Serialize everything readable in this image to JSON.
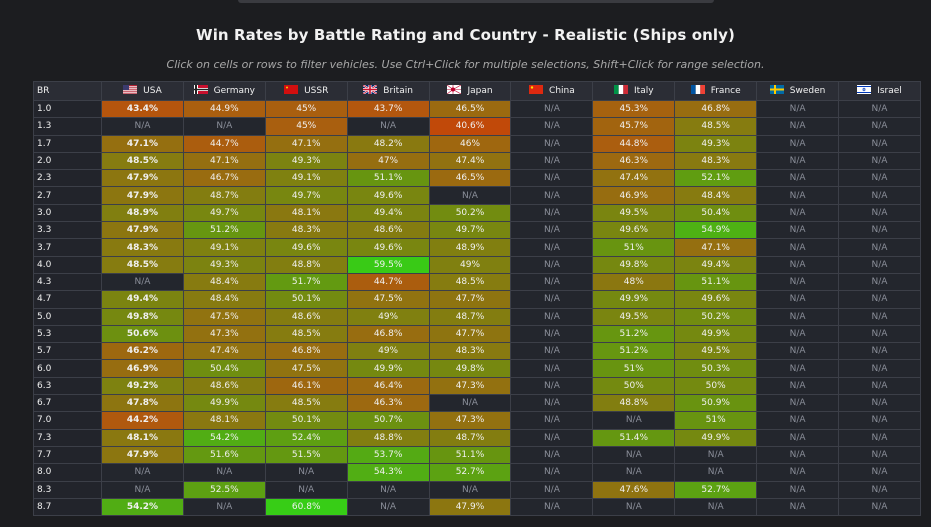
{
  "title": "Win Rates by Battle Rating and Country - Realistic (Ships only)",
  "subtitle": "Click on cells or rows to filter vehicles. Use Ctrl+Click for multiple selections, Shift+Click for range selection.",
  "br_header": "BR",
  "countries": [
    {
      "name": "USA",
      "flag": "usa-flag-icon"
    },
    {
      "name": "Germany",
      "flag": "germany-flag-icon"
    },
    {
      "name": "USSR",
      "flag": "ussr-flag-icon"
    },
    {
      "name": "Britain",
      "flag": "britain-flag-icon"
    },
    {
      "name": "Japan",
      "flag": "japan-flag-icon"
    },
    {
      "name": "China",
      "flag": "china-flag-icon"
    },
    {
      "name": "Italy",
      "flag": "italy-flag-icon"
    },
    {
      "name": "France",
      "flag": "france-flag-icon"
    },
    {
      "name": "Sweden",
      "flag": "sweden-flag-icon"
    },
    {
      "name": "Israel",
      "flag": "israel-flag-icon"
    }
  ],
  "rows": [
    {
      "br": "1.0",
      "cells": [
        "43.4%",
        "44.9%",
        "45%",
        "43.7%",
        "46.5%",
        "N/A",
        "45.3%",
        "46.8%",
        "N/A",
        "N/A"
      ]
    },
    {
      "br": "1.3",
      "cells": [
        "N/A",
        "N/A",
        "45%",
        "N/A",
        "40.6%",
        "N/A",
        "45.7%",
        "48.5%",
        "N/A",
        "N/A"
      ]
    },
    {
      "br": "1.7",
      "cells": [
        "47.1%",
        "44.7%",
        "47.1%",
        "48.2%",
        "46%",
        "N/A",
        "44.8%",
        "49.3%",
        "N/A",
        "N/A"
      ]
    },
    {
      "br": "2.0",
      "cells": [
        "48.5%",
        "47.1%",
        "49.3%",
        "47%",
        "47.4%",
        "N/A",
        "46.3%",
        "48.3%",
        "N/A",
        "N/A"
      ]
    },
    {
      "br": "2.3",
      "cells": [
        "47.9%",
        "46.7%",
        "49.1%",
        "51.1%",
        "46.5%",
        "N/A",
        "47.4%",
        "52.1%",
        "N/A",
        "N/A"
      ]
    },
    {
      "br": "2.7",
      "cells": [
        "47.9%",
        "48.7%",
        "49.7%",
        "49.6%",
        "N/A",
        "N/A",
        "46.9%",
        "48.4%",
        "N/A",
        "N/A"
      ]
    },
    {
      "br": "3.0",
      "cells": [
        "48.9%",
        "49.7%",
        "48.1%",
        "49.4%",
        "50.2%",
        "N/A",
        "49.5%",
        "50.4%",
        "N/A",
        "N/A"
      ]
    },
    {
      "br": "3.3",
      "cells": [
        "47.9%",
        "51.2%",
        "48.3%",
        "48.6%",
        "49.7%",
        "N/A",
        "49.6%",
        "54.9%",
        "N/A",
        "N/A"
      ]
    },
    {
      "br": "3.7",
      "cells": [
        "48.3%",
        "49.1%",
        "49.6%",
        "49.6%",
        "48.9%",
        "N/A",
        "51%",
        "47.1%",
        "N/A",
        "N/A"
      ]
    },
    {
      "br": "4.0",
      "cells": [
        "48.5%",
        "49.3%",
        "48.8%",
        "59.5%",
        "49%",
        "N/A",
        "49.8%",
        "49.4%",
        "N/A",
        "N/A"
      ]
    },
    {
      "br": "4.3",
      "cells": [
        "N/A",
        "48.4%",
        "51.7%",
        "44.7%",
        "48.5%",
        "N/A",
        "48%",
        "51.1%",
        "N/A",
        "N/A"
      ]
    },
    {
      "br": "4.7",
      "cells": [
        "49.4%",
        "48.4%",
        "50.1%",
        "47.5%",
        "47.7%",
        "N/A",
        "49.9%",
        "49.6%",
        "N/A",
        "N/A"
      ]
    },
    {
      "br": "5.0",
      "cells": [
        "49.8%",
        "47.5%",
        "48.6%",
        "49%",
        "48.7%",
        "N/A",
        "49.5%",
        "50.2%",
        "N/A",
        "N/A"
      ]
    },
    {
      "br": "5.3",
      "cells": [
        "50.6%",
        "47.3%",
        "48.5%",
        "46.8%",
        "47.7%",
        "N/A",
        "51.2%",
        "49.9%",
        "N/A",
        "N/A"
      ]
    },
    {
      "br": "5.7",
      "cells": [
        "46.2%",
        "47.4%",
        "46.8%",
        "49%",
        "48.3%",
        "N/A",
        "51.2%",
        "49.5%",
        "N/A",
        "N/A"
      ]
    },
    {
      "br": "6.0",
      "cells": [
        "46.9%",
        "50.4%",
        "47.5%",
        "49.9%",
        "49.8%",
        "N/A",
        "51%",
        "50.3%",
        "N/A",
        "N/A"
      ]
    },
    {
      "br": "6.3",
      "cells": [
        "49.2%",
        "48.6%",
        "46.1%",
        "46.4%",
        "47.3%",
        "N/A",
        "50%",
        "50%",
        "N/A",
        "N/A"
      ]
    },
    {
      "br": "6.7",
      "cells": [
        "47.8%",
        "49.9%",
        "48.5%",
        "46.3%",
        "N/A",
        "N/A",
        "48.8%",
        "50.9%",
        "N/A",
        "N/A"
      ]
    },
    {
      "br": "7.0",
      "cells": [
        "44.2%",
        "48.1%",
        "50.1%",
        "50.7%",
        "47.3%",
        "N/A",
        "N/A",
        "51%",
        "N/A",
        "N/A"
      ]
    },
    {
      "br": "7.3",
      "cells": [
        "48.1%",
        "54.2%",
        "52.4%",
        "48.8%",
        "48.7%",
        "N/A",
        "51.4%",
        "49.9%",
        "N/A",
        "N/A"
      ]
    },
    {
      "br": "7.7",
      "cells": [
        "47.9%",
        "51.6%",
        "51.5%",
        "53.7%",
        "51.1%",
        "N/A",
        "N/A",
        "N/A",
        "N/A",
        "N/A"
      ]
    },
    {
      "br": "8.0",
      "cells": [
        "N/A",
        "N/A",
        "N/A",
        "54.3%",
        "52.7%",
        "N/A",
        "N/A",
        "N/A",
        "N/A",
        "N/A"
      ]
    },
    {
      "br": "8.3",
      "cells": [
        "N/A",
        "52.5%",
        "N/A",
        "N/A",
        "N/A",
        "N/A",
        "47.6%",
        "52.7%",
        "N/A",
        "N/A"
      ]
    },
    {
      "br": "8.7",
      "cells": [
        "54.2%",
        "N/A",
        "60.8%",
        "N/A",
        "47.9%",
        "N/A",
        "N/A",
        "N/A",
        "N/A",
        "N/A"
      ]
    }
  ],
  "colors": {
    "background": "#1c1d20",
    "na_cell": "#23262d",
    "low": "#b84a12",
    "mid": "#8a7d10",
    "high": "#5fa812",
    "very_high": "#3fd018"
  }
}
